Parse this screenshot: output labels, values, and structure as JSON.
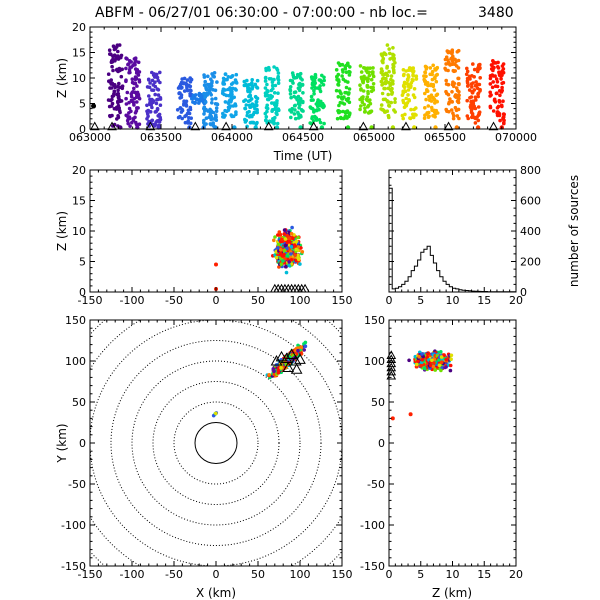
{
  "header": {
    "title": "ABFM - 06/27/01 06:30:00 - 07:00:00 - nb loc.=",
    "count": "3480"
  },
  "chart_data": [
    {
      "id": "time-height",
      "type": "scatter",
      "xlabel": "Time (UT)",
      "ylabel": "Z (km)",
      "xticks": [
        "063000",
        "063500",
        "064000",
        "064500",
        "065000",
        "065500",
        "070000"
      ],
      "yticks": [
        "0",
        "5",
        "10",
        "15",
        "20"
      ],
      "xlim": [
        "06:30:00",
        "07:00:00"
      ],
      "ylim": [
        0,
        20
      ],
      "color_scale": "time",
      "markers": {
        "ground_strike": "triangle",
        "cloud_flash": "dot"
      },
      "clusters": [
        {
          "t": "06:31:48",
          "z_min": 0.5,
          "z_max": 16.5,
          "color": "#4b0082"
        },
        {
          "t": "06:33:00",
          "z_min": 0.5,
          "z_max": 14.0,
          "color": "#5a0aa0"
        },
        {
          "t": "06:34:30",
          "z_min": 0.5,
          "z_max": 11.5,
          "color": "#4a30c8"
        },
        {
          "t": "06:36:40",
          "z_min": 1.0,
          "z_max": 10.0,
          "color": "#2a5ae0"
        },
        {
          "t": "06:37:40",
          "z_min": 5.0,
          "z_max": 7.0,
          "color": "#1a7ae8"
        },
        {
          "t": "06:38:30",
          "z_min": 0.5,
          "z_max": 11.5,
          "color": "#1a8ee8"
        },
        {
          "t": "06:39:50",
          "z_min": 2.0,
          "z_max": 11.0,
          "color": "#10a4e8"
        },
        {
          "t": "06:41:20",
          "z_min": 0.5,
          "z_max": 10.0,
          "color": "#00bcd8"
        },
        {
          "t": "06:42:50",
          "z_min": 1.0,
          "z_max": 12.5,
          "color": "#00d0c0"
        },
        {
          "t": "06:44:30",
          "z_min": 2.0,
          "z_max": 11.0,
          "color": "#00d890"
        },
        {
          "t": "06:46:00",
          "z_min": 1.0,
          "z_max": 11.5,
          "color": "#00e060"
        },
        {
          "t": "06:47:50",
          "z_min": 2.0,
          "z_max": 13.0,
          "color": "#20e020"
        },
        {
          "t": "06:49:30",
          "z_min": 3.0,
          "z_max": 12.5,
          "color": "#70e000"
        },
        {
          "t": "06:51:00",
          "z_min": 2.0,
          "z_max": 16.5,
          "color": "#b0e000"
        },
        {
          "t": "06:52:30",
          "z_min": 2.0,
          "z_max": 12.0,
          "color": "#e0e000"
        },
        {
          "t": "06:54:00",
          "z_min": 2.0,
          "z_max": 12.5,
          "color": "#ffb000"
        },
        {
          "t": "06:55:30",
          "z_min": 2.0,
          "z_max": 15.5,
          "color": "#ff7a00"
        },
        {
          "t": "06:57:00",
          "z_min": 1.0,
          "z_max": 13.0,
          "color": "#ff4000"
        },
        {
          "t": "06:58:40",
          "z_min": 1.0,
          "z_max": 13.5,
          "color": "#ff1000"
        }
      ]
    },
    {
      "id": "x-height",
      "type": "scatter",
      "xlabel": "",
      "ylabel": "Z (km)",
      "xticks": [
        "-150",
        "-100",
        "-50",
        "0",
        "50",
        "100",
        "150"
      ],
      "yticks": [
        "0",
        "5",
        "10",
        "15",
        "20"
      ],
      "xlim": [
        -150,
        150
      ],
      "ylim": [
        0,
        20
      ],
      "cluster": {
        "x_center": 85,
        "x_spread": 25,
        "z_center": 7,
        "z_spread": 4
      },
      "isolated": [
        {
          "x": 0,
          "z": 4.5
        },
        {
          "x": 0,
          "z": 0.5
        }
      ]
    },
    {
      "id": "height-histogram",
      "type": "bar",
      "xlabel": "",
      "ylabel": "number of sources",
      "xticks": [
        "0",
        "5",
        "10",
        "15",
        "20"
      ],
      "yticks": [
        "0",
        "200",
        "400",
        "600",
        "800"
      ],
      "xlim": [
        0,
        20
      ],
      "ylim": [
        0,
        800
      ],
      "bin_width": 0.5,
      "values": [
        680,
        20,
        25,
        35,
        50,
        70,
        100,
        140,
        170,
        210,
        260,
        280,
        300,
        240,
        190,
        140,
        100,
        70,
        50,
        35,
        25,
        20,
        15,
        12,
        10,
        8,
        6,
        5,
        4,
        3,
        3,
        2,
        2,
        2,
        1,
        1,
        1,
        1,
        1,
        1
      ]
    },
    {
      "id": "plan-view",
      "type": "scatter",
      "xlabel": "X (km)",
      "ylabel": "Y (km)",
      "xticks": [
        "-150",
        "-100",
        "-50",
        "0",
        "50",
        "100",
        "150"
      ],
      "yticks": [
        "-150",
        "-100",
        "-50",
        "0",
        "50",
        "100",
        "150"
      ],
      "xlim": [
        -150,
        150
      ],
      "ylim": [
        -150,
        150
      ],
      "range_rings_km": [
        25,
        50,
        75,
        100,
        125,
        150,
        175,
        200
      ],
      "cluster": {
        "x_center": 85,
        "y_center": 100,
        "x_spread": 35,
        "y_spread": 25
      },
      "ground_strikes": [
        {
          "x": 78,
          "y": 105
        },
        {
          "x": 84,
          "y": 103
        },
        {
          "x": 90,
          "y": 108
        },
        {
          "x": 95,
          "y": 100
        },
        {
          "x": 100,
          "y": 102
        },
        {
          "x": 86,
          "y": 92
        },
        {
          "x": 96,
          "y": 90
        },
        {
          "x": 72,
          "y": 100
        }
      ]
    },
    {
      "id": "height-y",
      "type": "scatter",
      "xlabel": "Z (km)",
      "ylabel": "",
      "xticks": [
        "0",
        "5",
        "10",
        "15",
        "20"
      ],
      "yticks": [
        "-150",
        "-100",
        "-50",
        "0",
        "50",
        "100",
        "150"
      ],
      "xlim": [
        0,
        20
      ],
      "ylim": [
        -150,
        150
      ],
      "cluster": {
        "z_center": 7,
        "y_center": 100,
        "z_spread": 4,
        "y_spread": 18
      }
    }
  ]
}
